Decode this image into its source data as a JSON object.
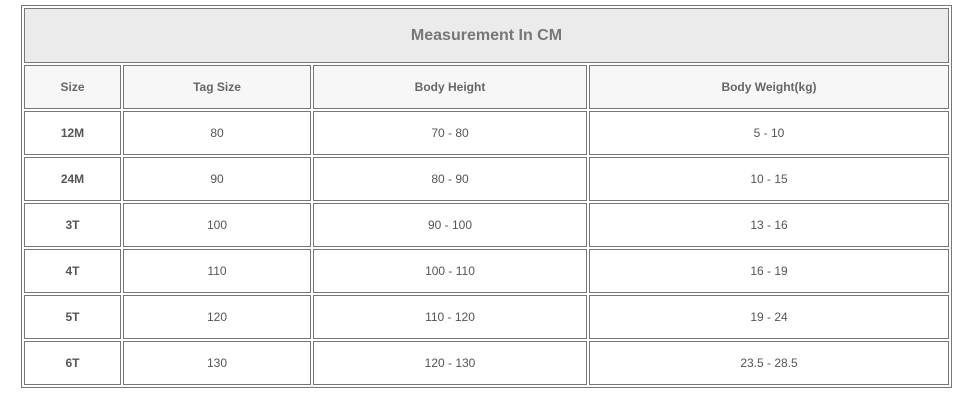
{
  "title": "Measurement In CM",
  "headers": [
    "Size",
    "Tag Size",
    "Body Height",
    "Body Weight(kg)"
  ],
  "rows": [
    [
      "12M",
      "80",
      "70 - 80",
      "5 - 10"
    ],
    [
      "24M",
      "90",
      "80 - 90",
      "10 - 15"
    ],
    [
      "3T",
      "100",
      "90 - 100",
      "13 - 16"
    ],
    [
      "4T",
      "110",
      "100 - 110",
      "16 - 19"
    ],
    [
      "5T",
      "120",
      "110 - 120",
      "19 - 24"
    ],
    [
      "6T",
      "130",
      "120 - 130",
      "23.5 - 28.5"
    ]
  ]
}
